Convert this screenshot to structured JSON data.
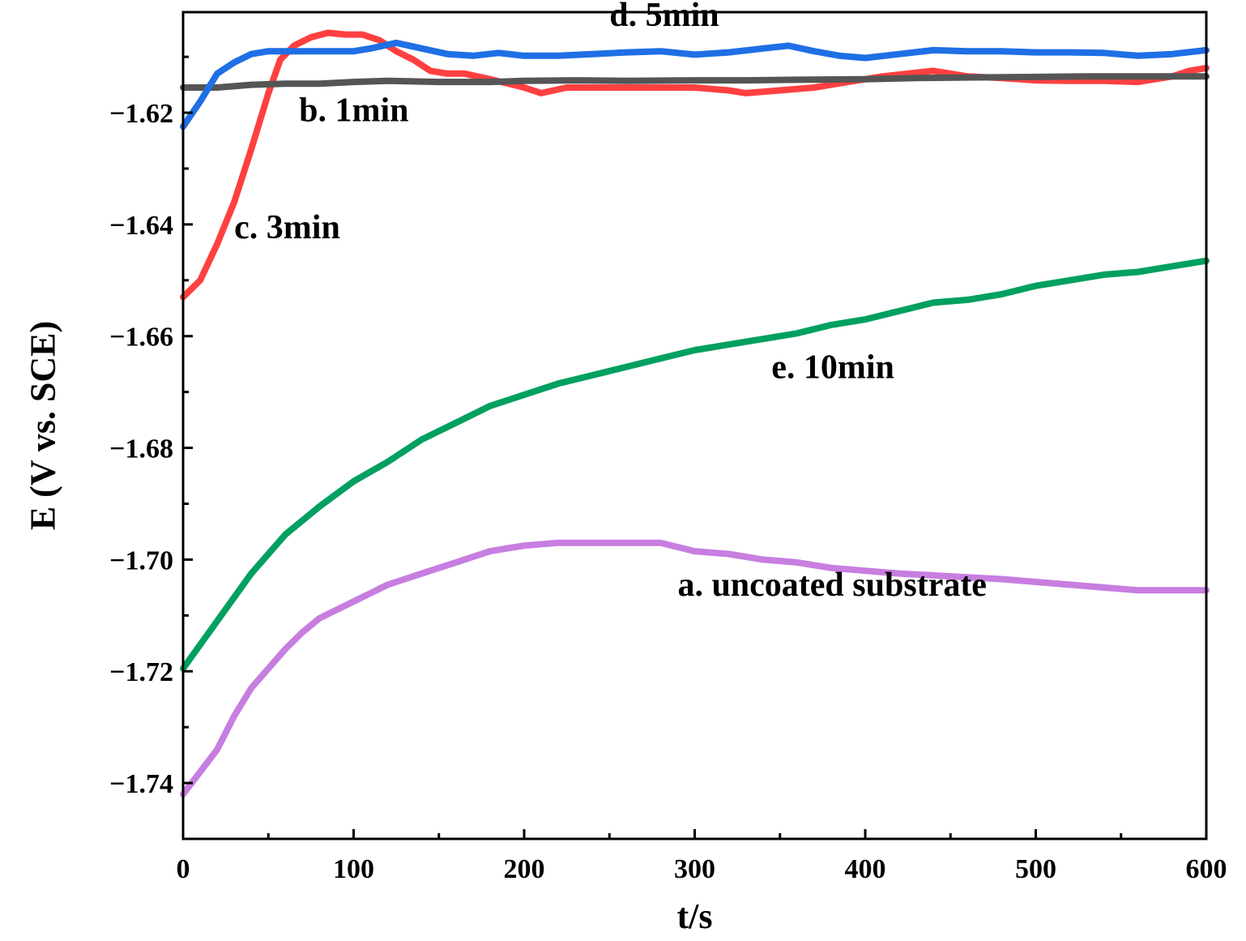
{
  "chart_data": {
    "type": "line",
    "title": "",
    "xlabel": "t/s",
    "ylabel": "E (V vs. SCE)",
    "xlim": [
      0,
      600
    ],
    "ylim": [
      -1.75,
      -1.602
    ],
    "grid": false,
    "legend": "none",
    "x_ticks": [
      0,
      100,
      200,
      300,
      400,
      500,
      600
    ],
    "x_tick_labels": [
      "0",
      "100",
      "200",
      "300",
      "400",
      "500",
      "600"
    ],
    "y_ticks": [
      -1.62,
      -1.64,
      -1.66,
      -1.68,
      -1.7,
      -1.72,
      -1.74
    ],
    "y_tick_labels": [
      "−1.62",
      "−1.64",
      "−1.66",
      "−1.68",
      "−1.70",
      "−1.72",
      "−1.74"
    ],
    "series": [
      {
        "key": "a",
        "name": "a. uncoated substrate",
        "color": "#c77ee0",
        "label_at": [
          290,
          -1.7065
        ],
        "points": [
          [
            0,
            -1.742
          ],
          [
            10,
            -1.738
          ],
          [
            20,
            -1.734
          ],
          [
            30,
            -1.728
          ],
          [
            40,
            -1.723
          ],
          [
            50,
            -1.7195
          ],
          [
            60,
            -1.716
          ],
          [
            70,
            -1.713
          ],
          [
            80,
            -1.7105
          ],
          [
            90,
            -1.709
          ],
          [
            100,
            -1.7075
          ],
          [
            110,
            -1.706
          ],
          [
            120,
            -1.7045
          ],
          [
            130,
            -1.7035
          ],
          [
            140,
            -1.7025
          ],
          [
            150,
            -1.7015
          ],
          [
            160,
            -1.7005
          ],
          [
            170,
            -1.6995
          ],
          [
            180,
            -1.6985
          ],
          [
            190,
            -1.698
          ],
          [
            200,
            -1.6975
          ],
          [
            220,
            -1.697
          ],
          [
            250,
            -1.697
          ],
          [
            280,
            -1.697
          ],
          [
            300,
            -1.6985
          ],
          [
            320,
            -1.699
          ],
          [
            340,
            -1.7
          ],
          [
            360,
            -1.7005
          ],
          [
            380,
            -1.7015
          ],
          [
            400,
            -1.702
          ],
          [
            420,
            -1.7025
          ],
          [
            450,
            -1.703
          ],
          [
            480,
            -1.7035
          ],
          [
            500,
            -1.704
          ],
          [
            520,
            -1.7045
          ],
          [
            540,
            -1.705
          ],
          [
            560,
            -1.7055
          ],
          [
            580,
            -1.7055
          ],
          [
            600,
            -1.7055
          ]
        ]
      },
      {
        "key": "b",
        "name": "b. 1min",
        "color": "#555555",
        "label_at": [
          68,
          -1.6215
        ],
        "points": [
          [
            0,
            -1.6155
          ],
          [
            20,
            -1.6155
          ],
          [
            40,
            -1.615
          ],
          [
            60,
            -1.6148
          ],
          [
            80,
            -1.6148
          ],
          [
            100,
            -1.6145
          ],
          [
            120,
            -1.6143
          ],
          [
            150,
            -1.6145
          ],
          [
            180,
            -1.6145
          ],
          [
            200,
            -1.6143
          ],
          [
            230,
            -1.6142
          ],
          [
            260,
            -1.6143
          ],
          [
            300,
            -1.6142
          ],
          [
            330,
            -1.6142
          ],
          [
            360,
            -1.6141
          ],
          [
            400,
            -1.614
          ],
          [
            430,
            -1.6138
          ],
          [
            460,
            -1.6137
          ],
          [
            500,
            -1.6136
          ],
          [
            530,
            -1.6135
          ],
          [
            560,
            -1.6135
          ],
          [
            600,
            -1.6135
          ]
        ]
      },
      {
        "key": "c",
        "name": "c. 3min",
        "color": "#ff4040",
        "label_at": [
          30,
          -1.6425
        ],
        "points": [
          [
            0,
            -1.653
          ],
          [
            10,
            -1.65
          ],
          [
            20,
            -1.6435
          ],
          [
            30,
            -1.636
          ],
          [
            40,
            -1.6265
          ],
          [
            50,
            -1.6165
          ],
          [
            57,
            -1.6105
          ],
          [
            65,
            -1.608
          ],
          [
            75,
            -1.6065
          ],
          [
            85,
            -1.6057
          ],
          [
            95,
            -1.606
          ],
          [
            105,
            -1.606
          ],
          [
            115,
            -1.607
          ],
          [
            125,
            -1.609
          ],
          [
            135,
            -1.6105
          ],
          [
            145,
            -1.6125
          ],
          [
            155,
            -1.613
          ],
          [
            165,
            -1.613
          ],
          [
            180,
            -1.614
          ],
          [
            200,
            -1.6155
          ],
          [
            210,
            -1.6165
          ],
          [
            225,
            -1.6155
          ],
          [
            245,
            -1.6155
          ],
          [
            270,
            -1.6155
          ],
          [
            300,
            -1.6155
          ],
          [
            320,
            -1.616
          ],
          [
            330,
            -1.6165
          ],
          [
            350,
            -1.616
          ],
          [
            370,
            -1.6155
          ],
          [
            390,
            -1.6145
          ],
          [
            410,
            -1.6135
          ],
          [
            425,
            -1.613
          ],
          [
            440,
            -1.6125
          ],
          [
            460,
            -1.6135
          ],
          [
            480,
            -1.6138
          ],
          [
            500,
            -1.6142
          ],
          [
            520,
            -1.6143
          ],
          [
            540,
            -1.6143
          ],
          [
            560,
            -1.6145
          ],
          [
            580,
            -1.6135
          ],
          [
            590,
            -1.6125
          ],
          [
            600,
            -1.612
          ]
        ]
      },
      {
        "key": "d",
        "name": "d. 5min",
        "color": "#1f6fe5",
        "label_at": [
          250,
          -1.6045
        ],
        "points": [
          [
            0,
            -1.6225
          ],
          [
            10,
            -1.618
          ],
          [
            20,
            -1.613
          ],
          [
            30,
            -1.611
          ],
          [
            40,
            -1.6095
          ],
          [
            50,
            -1.609
          ],
          [
            60,
            -1.609
          ],
          [
            70,
            -1.609
          ],
          [
            80,
            -1.609
          ],
          [
            90,
            -1.609
          ],
          [
            100,
            -1.609
          ],
          [
            110,
            -1.6085
          ],
          [
            125,
            -1.6075
          ],
          [
            140,
            -1.6085
          ],
          [
            155,
            -1.6095
          ],
          [
            170,
            -1.6098
          ],
          [
            185,
            -1.6093
          ],
          [
            200,
            -1.6098
          ],
          [
            220,
            -1.6098
          ],
          [
            240,
            -1.6095
          ],
          [
            260,
            -1.6092
          ],
          [
            280,
            -1.609
          ],
          [
            300,
            -1.6096
          ],
          [
            320,
            -1.6092
          ],
          [
            340,
            -1.6085
          ],
          [
            355,
            -1.608
          ],
          [
            370,
            -1.609
          ],
          [
            385,
            -1.6098
          ],
          [
            400,
            -1.6102
          ],
          [
            420,
            -1.6095
          ],
          [
            440,
            -1.6088
          ],
          [
            460,
            -1.609
          ],
          [
            480,
            -1.609
          ],
          [
            500,
            -1.6092
          ],
          [
            520,
            -1.6092
          ],
          [
            540,
            -1.6093
          ],
          [
            560,
            -1.6098
          ],
          [
            580,
            -1.6095
          ],
          [
            600,
            -1.6088
          ]
        ]
      },
      {
        "key": "e",
        "name": "e. 10min",
        "color": "#00a060",
        "label_at": [
          345,
          -1.6675
        ],
        "points": [
          [
            0,
            -1.7195
          ],
          [
            20,
            -1.711
          ],
          [
            40,
            -1.7025
          ],
          [
            60,
            -1.6955
          ],
          [
            80,
            -1.6905
          ],
          [
            100,
            -1.686
          ],
          [
            120,
            -1.6825
          ],
          [
            140,
            -1.6785
          ],
          [
            160,
            -1.6755
          ],
          [
            180,
            -1.6725
          ],
          [
            200,
            -1.6705
          ],
          [
            220,
            -1.6685
          ],
          [
            240,
            -1.667
          ],
          [
            260,
            -1.6655
          ],
          [
            280,
            -1.664
          ],
          [
            300,
            -1.6625
          ],
          [
            320,
            -1.6615
          ],
          [
            340,
            -1.6605
          ],
          [
            360,
            -1.6595
          ],
          [
            380,
            -1.658
          ],
          [
            400,
            -1.657
          ],
          [
            420,
            -1.6555
          ],
          [
            440,
            -1.654
          ],
          [
            460,
            -1.6535
          ],
          [
            480,
            -1.6525
          ],
          [
            500,
            -1.651
          ],
          [
            520,
            -1.65
          ],
          [
            540,
            -1.649
          ],
          [
            560,
            -1.6485
          ],
          [
            580,
            -1.6475
          ],
          [
            600,
            -1.6465
          ]
        ]
      }
    ]
  }
}
